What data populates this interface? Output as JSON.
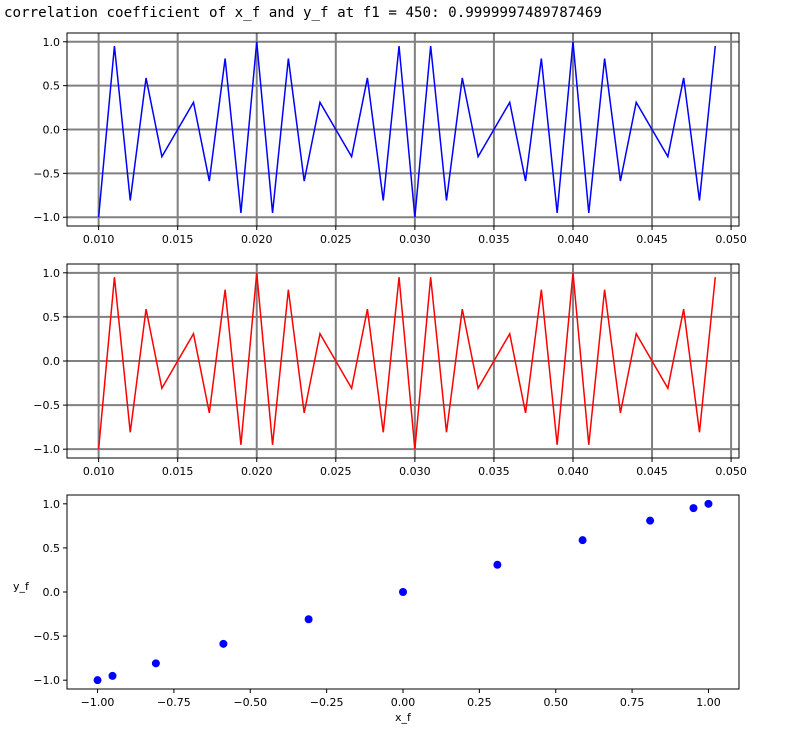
{
  "printout": "correlation coefficient of x_f and y_f at f1 = 450: 0.9999997489787469",
  "colors": {
    "signal_x": "#0000ff",
    "signal_y": "#ff0000",
    "scatter": "#0000ff",
    "grid": "#808080",
    "axes": "#000000"
  },
  "chart_data": [
    {
      "type": "line",
      "title": "",
      "xlabel": "",
      "ylabel": "",
      "xlim": [
        0.008,
        0.0505
      ],
      "ylim": [
        -1.1,
        1.1
      ],
      "xticks": [
        0.01,
        0.015,
        0.02,
        0.025,
        0.03,
        0.035,
        0.04,
        0.045,
        0.05
      ],
      "xtick_labels": [
        "0.010",
        "0.015",
        "0.020",
        "0.025",
        "0.030",
        "0.035",
        "0.040",
        "0.045",
        "0.050"
      ],
      "yticks": [
        1.0,
        0.5,
        0.0,
        -0.5,
        -1.0
      ],
      "ytick_labels": [
        "1.0",
        "0.5",
        "0.0",
        "−0.5",
        "−1.0"
      ],
      "grid": true,
      "series": [
        {
          "color": "#0000ff",
          "x": [
            0.01,
            0.011,
            0.012,
            0.013,
            0.014,
            0.015,
            0.016,
            0.017,
            0.018,
            0.019,
            0.02,
            0.021,
            0.022,
            0.023,
            0.024,
            0.025,
            0.026,
            0.027,
            0.028,
            0.029,
            0.03,
            0.031,
            0.032,
            0.033,
            0.034,
            0.035,
            0.036,
            0.037,
            0.038,
            0.039,
            0.04,
            0.041,
            0.042,
            0.043,
            0.044,
            0.045,
            0.046,
            0.047,
            0.048,
            0.049
          ],
          "y": [
            -1.0,
            0.951,
            -0.809,
            0.588,
            -0.309,
            0.0,
            0.309,
            -0.588,
            0.809,
            -0.951,
            1.0,
            -0.951,
            0.809,
            -0.588,
            0.309,
            0.0,
            -0.309,
            0.588,
            -0.809,
            0.951,
            -1.0,
            0.951,
            -0.809,
            0.588,
            -0.309,
            0.0,
            0.309,
            -0.588,
            0.809,
            -0.951,
            1.0,
            -0.951,
            0.809,
            -0.588,
            0.309,
            0.0,
            -0.309,
            0.588,
            -0.809,
            0.951
          ]
        }
      ]
    },
    {
      "type": "line",
      "title": "",
      "xlabel": "",
      "ylabel": "",
      "xlim": [
        0.008,
        0.0505
      ],
      "ylim": [
        -1.1,
        1.1
      ],
      "xticks": [
        0.01,
        0.015,
        0.02,
        0.025,
        0.03,
        0.035,
        0.04,
        0.045,
        0.05
      ],
      "xtick_labels": [
        "0.010",
        "0.015",
        "0.020",
        "0.025",
        "0.030",
        "0.035",
        "0.040",
        "0.045",
        "0.050"
      ],
      "yticks": [
        1.0,
        0.5,
        0.0,
        -0.5,
        -1.0
      ],
      "ytick_labels": [
        "1.0",
        "0.5",
        "0.0",
        "−0.5",
        "−1.0"
      ],
      "grid": true,
      "series": [
        {
          "color": "#ff0000",
          "x": [
            0.01,
            0.011,
            0.012,
            0.013,
            0.014,
            0.015,
            0.016,
            0.017,
            0.018,
            0.019,
            0.02,
            0.021,
            0.022,
            0.023,
            0.024,
            0.025,
            0.026,
            0.027,
            0.028,
            0.029,
            0.03,
            0.031,
            0.032,
            0.033,
            0.034,
            0.035,
            0.036,
            0.037,
            0.038,
            0.039,
            0.04,
            0.041,
            0.042,
            0.043,
            0.044,
            0.045,
            0.046,
            0.047,
            0.048,
            0.049
          ],
          "y": [
            -1.0,
            0.951,
            -0.809,
            0.588,
            -0.309,
            0.0,
            0.309,
            -0.588,
            0.809,
            -0.951,
            1.0,
            -0.951,
            0.809,
            -0.588,
            0.309,
            0.0,
            -0.309,
            0.588,
            -0.809,
            0.951,
            -1.0,
            0.951,
            -0.809,
            0.588,
            -0.309,
            0.0,
            0.309,
            -0.588,
            0.809,
            -0.951,
            1.0,
            -0.951,
            0.809,
            -0.588,
            0.309,
            0.0,
            -0.309,
            0.588,
            -0.809,
            0.951
          ]
        }
      ]
    },
    {
      "type": "scatter",
      "title": "",
      "xlabel": "x_f",
      "ylabel": "y_f",
      "xlim": [
        -1.1,
        1.1
      ],
      "ylim": [
        -1.1,
        1.1
      ],
      "xticks": [
        -1.0,
        -0.75,
        -0.5,
        -0.25,
        0.0,
        0.25,
        0.5,
        0.75,
        1.0
      ],
      "xtick_labels": [
        "−1.00",
        "−0.75",
        "−0.50",
        "−0.25",
        "0.00",
        "0.25",
        "0.50",
        "0.75",
        "1.00"
      ],
      "yticks": [
        1.0,
        0.5,
        0.0,
        -0.5,
        -1.0
      ],
      "ytick_labels": [
        "1.0",
        "0.5",
        "0.0",
        "−0.5",
        "−1.0"
      ],
      "grid": false,
      "series": [
        {
          "color": "#0000ff",
          "x": [
            -1.0,
            -0.951,
            -0.809,
            -0.588,
            -0.309,
            0.0,
            0.309,
            0.588,
            0.809,
            0.951,
            1.0
          ],
          "y": [
            -1.0,
            -0.951,
            -0.809,
            -0.588,
            -0.309,
            0.0,
            0.309,
            0.588,
            0.809,
            0.951,
            1.0
          ]
        }
      ]
    }
  ]
}
